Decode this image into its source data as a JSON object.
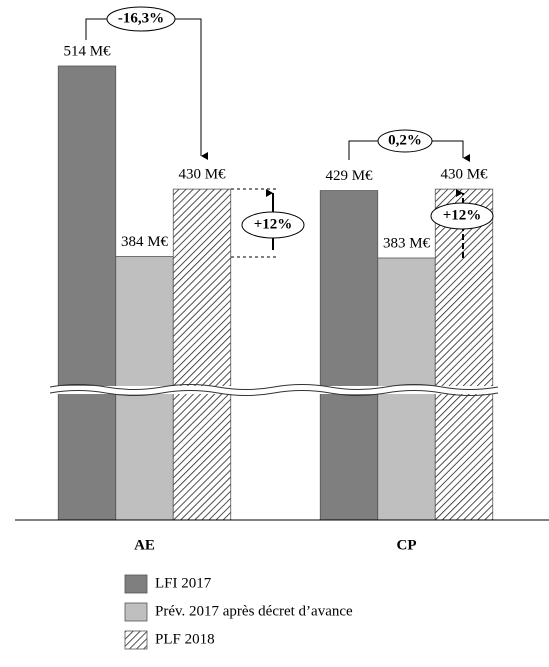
{
  "chart_data": {
    "type": "bar",
    "categories": [
      "AE",
      "CP"
    ],
    "series": [
      {
        "name": "LFI 2017",
        "color": "#7f7f7f",
        "values": [
          514,
          429
        ],
        "value_labels": [
          "514 M€",
          "429 M€"
        ]
      },
      {
        "name": "Prév. 2017 après décret d’avance",
        "color": "#bfbfbf",
        "values": [
          384,
          383
        ],
        "value_labels": [
          "384 M€",
          "383 M€"
        ]
      },
      {
        "name": "PLF 2018",
        "color": "#ffffff",
        "pattern": "hatch",
        "values": [
          430,
          430
        ],
        "value_labels": [
          "430 M€",
          "430 M€"
        ]
      }
    ],
    "annotations": [
      "-16,3%",
      "+12%",
      "0,2%",
      "+12%"
    ]
  }
}
